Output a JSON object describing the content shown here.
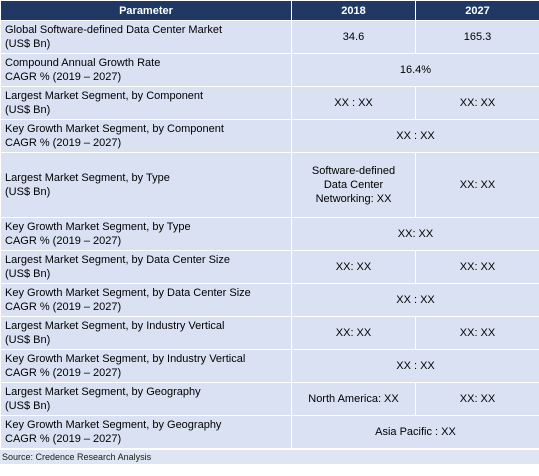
{
  "table": {
    "headers": [
      "Parameter",
      "2018",
      "2027"
    ],
    "rows": [
      {
        "line1": "Global Software-defined Data Center Market",
        "line2": "(US$ Bn)",
        "v2018": "34.6",
        "v2027": "165.3",
        "merged": null
      },
      {
        "line1": "Compound Annual Growth Rate",
        "line2": "CAGR % (2019 – 2027)",
        "v2018": null,
        "v2027": null,
        "merged": "16.4%"
      },
      {
        "line1": "Largest Market Segment, by Component",
        "line2": "(US$ Bn)",
        "v2018": "XX : XX",
        "v2027": "XX: XX",
        "merged": null
      },
      {
        "line1": "Key Growth Market Segment, by Component",
        "line2": "CAGR % (2019 – 2027)",
        "v2018": null,
        "v2027": null,
        "merged": "XX : XX"
      },
      {
        "line1": "Largest Market Segment, by Type",
        "line2": "(US$ Bn)",
        "v2018": "Software-defined Data Center Networking: XX",
        "v2027": "XX: XX",
        "merged": null
      },
      {
        "line1": "Key Growth Market Segment, by Type",
        "line2": "CAGR % (2019 – 2027)",
        "v2018": null,
        "v2027": null,
        "merged": "XX: XX"
      },
      {
        "line1": "Largest Market Segment, by Data Center Size",
        "line2": "(US$ Bn)",
        "v2018": "XX: XX",
        "v2027": "XX: XX",
        "merged": null
      },
      {
        "line1": "Key Growth Market Segment, by Data Center Size",
        "line2": "CAGR % (2019 – 2027)",
        "v2018": null,
        "v2027": null,
        "merged": "XX : XX"
      },
      {
        "line1": "Largest Market Segment, by Industry Vertical",
        "line2": "(US$ Bn)",
        "v2018": "XX: XX",
        "v2027": "XX: XX",
        "merged": null
      },
      {
        "line1": "Key Growth Market Segment, by Industry Vertical",
        "line2": "CAGR % (2019 – 2027)",
        "v2018": null,
        "v2027": null,
        "merged": "XX : XX"
      },
      {
        "line1": "Largest Market Segment, by Geography",
        "line2": "(US$ Bn)",
        "v2018": "North America: XX",
        "v2027": "XX: XX",
        "merged": null
      },
      {
        "line1": "Key Growth Market Segment, by Geography",
        "line2": "CAGR % (2019 – 2027)",
        "v2018": null,
        "v2027": null,
        "merged": "Asia Pacific : XX"
      }
    ]
  },
  "source": "Source: Credence Research Analysis",
  "colors": {
    "header_bg": "#1f3864",
    "header_text": "#ffffff",
    "cell_bg": "#d9e1f2"
  }
}
